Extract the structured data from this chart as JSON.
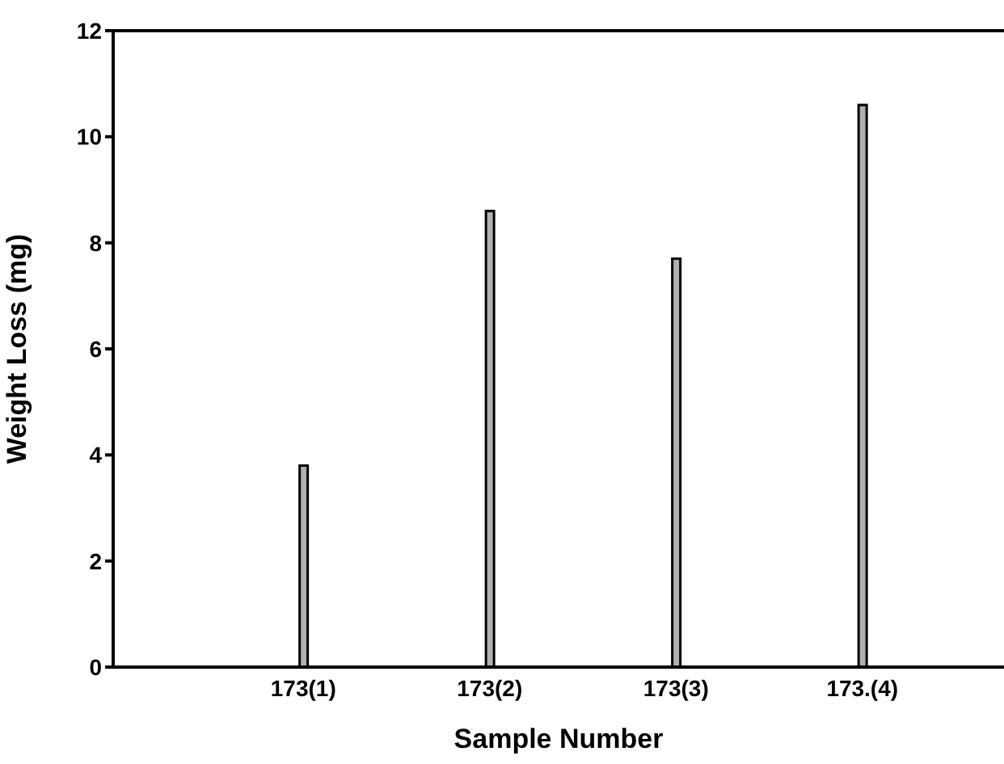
{
  "chart_data": {
    "type": "bar",
    "xlabel": "Sample Number",
    "ylabel": "Weight Loss (mg)",
    "categories": [
      "173(1)",
      "173(2)",
      "173(3)",
      "173.(4)"
    ],
    "values": [
      3.8,
      8.6,
      7.7,
      10.6
    ],
    "color": "#b0b0b0",
    "ylim": [
      0,
      12
    ],
    "yticks": [
      0,
      2,
      4,
      6,
      8,
      10,
      12
    ],
    "grid": false,
    "legend": false
  }
}
